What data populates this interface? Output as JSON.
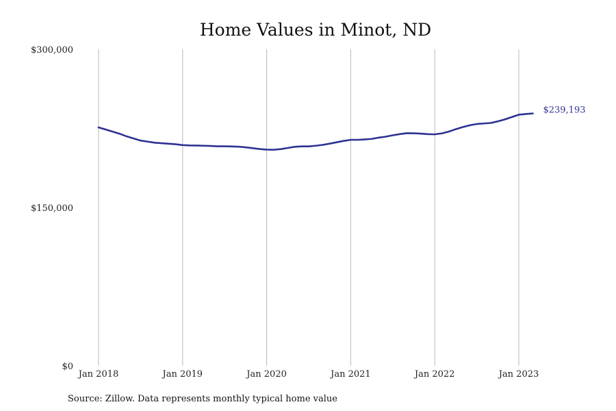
{
  "chart_data": {
    "type": "line",
    "title": "Home Values in Minot, ND",
    "xlabel": "",
    "ylabel": "",
    "source": "Source: Zillow. Data represents monthly typical home value",
    "ylim": [
      0,
      300000
    ],
    "y_ticks": [
      {
        "value": 0,
        "label": "$0"
      },
      {
        "value": 150000,
        "label": "$150,000"
      },
      {
        "value": 300000,
        "label": "$300,000"
      }
    ],
    "x_ticks": [
      {
        "value": "2018-01",
        "label": "Jan 2018"
      },
      {
        "value": "2019-01",
        "label": "Jan 2019"
      },
      {
        "value": "2020-01",
        "label": "Jan 2020"
      },
      {
        "value": "2021-01",
        "label": "Jan 2021"
      },
      {
        "value": "2022-01",
        "label": "Jan 2022"
      },
      {
        "value": "2023-01",
        "label": "Jan 2023"
      }
    ],
    "grid": "vertical",
    "line_color": "#2e3192",
    "end_label": "$239,193",
    "series": [
      {
        "x": [
          "2018-01",
          "2018-02",
          "2018-03",
          "2018-04",
          "2018-05",
          "2018-06",
          "2018-07",
          "2018-08",
          "2018-09",
          "2018-10",
          "2018-11",
          "2018-12",
          "2019-01",
          "2019-02",
          "2019-03",
          "2019-04",
          "2019-05",
          "2019-06",
          "2019-07",
          "2019-08",
          "2019-09",
          "2019-10",
          "2019-11",
          "2019-12",
          "2020-01",
          "2020-02",
          "2020-03",
          "2020-04",
          "2020-05",
          "2020-06",
          "2020-07",
          "2020-08",
          "2020-09",
          "2020-10",
          "2020-11",
          "2020-12",
          "2021-01",
          "2021-02",
          "2021-03",
          "2021-04",
          "2021-05",
          "2021-06",
          "2021-07",
          "2021-08",
          "2021-09",
          "2021-10",
          "2021-11",
          "2021-12",
          "2022-01",
          "2022-02",
          "2022-03",
          "2022-04",
          "2022-05",
          "2022-06",
          "2022-07",
          "2022-08",
          "2022-09",
          "2022-10",
          "2022-11",
          "2022-12",
          "2023-01",
          "2023-02",
          "2023-03"
        ],
        "values": [
          226000,
          224000,
          222000,
          220000,
          217500,
          215500,
          213500,
          212500,
          211500,
          211000,
          210500,
          210000,
          209200,
          208900,
          208800,
          208600,
          208400,
          208100,
          208100,
          207900,
          207700,
          207100,
          206300,
          205500,
          204900,
          204800,
          205400,
          206500,
          207600,
          208000,
          208000,
          208600,
          209400,
          210600,
          211900,
          213200,
          214200,
          214200,
          214600,
          215100,
          216300,
          217200,
          218500,
          219600,
          220500,
          220400,
          220100,
          219600,
          219400,
          220300,
          222000,
          224300,
          226300,
          228000,
          229200,
          229700,
          230200,
          231700,
          233500,
          235800,
          238000,
          238700,
          239193
        ]
      }
    ]
  }
}
